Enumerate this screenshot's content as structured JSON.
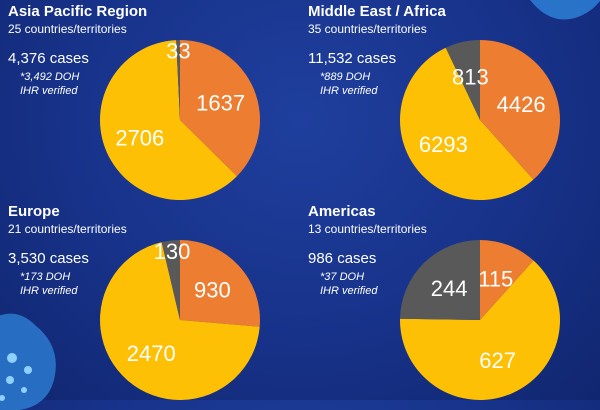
{
  "colors": {
    "orange": "#EC7D31",
    "yellow": "#FEC005",
    "gray": "#595959"
  },
  "chart_data": [
    {
      "type": "pie",
      "title": "Asia Pacific Region",
      "subtitle": "25 countries/territories",
      "cases": "4,376 cases",
      "note_line1": "*3,492 DOH",
      "note_line2": "IHR verified",
      "slices": [
        {
          "value": 1637,
          "label": "1637",
          "color": "#EC7D31"
        },
        {
          "value": 2706,
          "label": "2706",
          "color": "#FEC005"
        },
        {
          "value": 33,
          "label": "33",
          "color": "#595959"
        }
      ]
    },
    {
      "type": "pie",
      "title": "Middle East / Africa",
      "subtitle": "35 countries/territories",
      "cases": "11,532 cases",
      "note_line1": "*889 DOH",
      "note_line2": "IHR verified",
      "slices": [
        {
          "value": 4426,
          "label": "4426",
          "color": "#EC7D31"
        },
        {
          "value": 6293,
          "label": "6293",
          "color": "#FEC005"
        },
        {
          "value": 813,
          "label": "813",
          "color": "#595959"
        }
      ]
    },
    {
      "type": "pie",
      "title": "Europe",
      "subtitle": "21 countries/territories",
      "cases": "3,530 cases",
      "note_line1": "*173 DOH",
      "note_line2": "IHR verified",
      "slices": [
        {
          "value": 930,
          "label": "930",
          "color": "#EC7D31"
        },
        {
          "value": 2470,
          "label": "2470",
          "color": "#FEC005"
        },
        {
          "value": 130,
          "label": "130",
          "color": "#595959"
        }
      ]
    },
    {
      "type": "pie",
      "title": "Americas",
      "subtitle": "13 countries/territories",
      "cases": "986 cases",
      "note_line1": "*37 DOH",
      "note_line2": "IHR verified",
      "slices": [
        {
          "value": 115,
          "label": "115",
          "color": "#EC7D31"
        },
        {
          "value": 627,
          "label": "627",
          "color": "#FEC005"
        },
        {
          "value": 244,
          "label": "244",
          "color": "#595959"
        }
      ]
    }
  ]
}
